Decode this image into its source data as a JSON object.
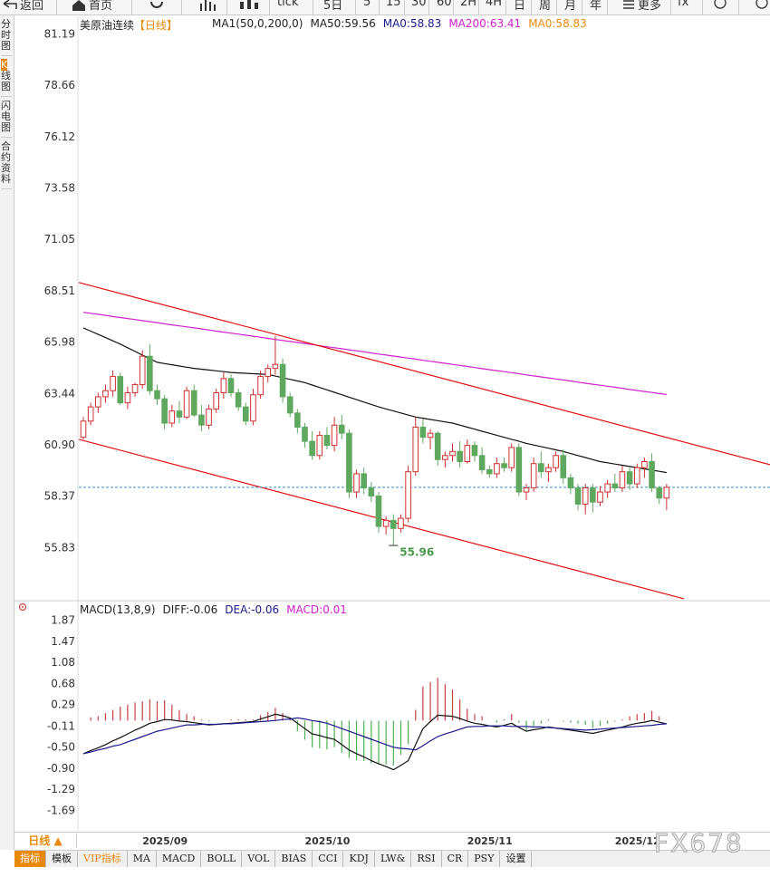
{
  "toolbar": [
    "返回",
    "首页",
    "tick",
    "5日",
    "5",
    "15",
    "30",
    "60",
    "2H",
    "4H",
    "日",
    "周",
    "月",
    "年",
    "更多",
    "fx"
  ],
  "side_tabs": [
    "分时图",
    "K线图",
    "闪电图",
    "合约资料"
  ],
  "chart_data": [
    {
      "type": "candlestick",
      "title": "美原油连续",
      "title_color": "#222222",
      "period": "【日线】",
      "period_color": "#e8890c",
      "legend": [
        {
          "text": "MA1(50,0,200,0)",
          "color": "#222222"
        },
        {
          "text": "MA50:59.56",
          "color": "#222222"
        },
        {
          "text": "MA0:58.83",
          "color": "#1a1a8c"
        },
        {
          "text": "MA200:63.41",
          "color": "#d020d0"
        },
        {
          "text": "MA0:58.83",
          "color": "#e8890c"
        }
      ],
      "up_color": "#d03030",
      "down_color": "#5fa85f",
      "ohlc": [
        [
          61.3,
          62.3,
          61.2,
          62.1
        ],
        [
          62.1,
          63.0,
          61.9,
          62.8
        ],
        [
          62.8,
          63.5,
          62.5,
          63.3
        ],
        [
          63.3,
          63.9,
          63.0,
          63.6
        ],
        [
          63.6,
          64.6,
          63.3,
          64.3
        ],
        [
          64.3,
          64.5,
          62.9,
          63.0
        ],
        [
          63.0,
          63.8,
          62.7,
          63.5
        ],
        [
          63.5,
          64.0,
          63.3,
          63.9
        ],
        [
          63.9,
          65.6,
          63.7,
          65.3
        ],
        [
          65.3,
          65.9,
          63.4,
          63.6
        ],
        [
          63.6,
          63.9,
          62.9,
          63.2
        ],
        [
          63.2,
          63.4,
          61.7,
          62.0
        ],
        [
          62.0,
          62.9,
          61.8,
          62.6
        ],
        [
          62.6,
          63.1,
          62.0,
          62.3
        ],
        [
          62.3,
          63.8,
          62.2,
          63.6
        ],
        [
          63.6,
          63.9,
          62.3,
          62.4
        ],
        [
          62.4,
          62.9,
          61.6,
          61.9
        ],
        [
          61.9,
          62.9,
          61.7,
          62.7
        ],
        [
          62.7,
          63.7,
          62.5,
          63.5
        ],
        [
          63.5,
          64.5,
          63.2,
          64.2
        ],
        [
          64.2,
          64.4,
          63.3,
          63.5
        ],
        [
          63.5,
          63.7,
          62.6,
          62.8
        ],
        [
          62.8,
          63.0,
          61.9,
          62.1
        ],
        [
          62.1,
          63.7,
          61.9,
          63.4
        ],
        [
          63.4,
          64.6,
          63.2,
          64.3
        ],
        [
          64.3,
          64.9,
          64.0,
          64.7
        ],
        [
          64.7,
          66.3,
          64.4,
          64.9
        ],
        [
          64.9,
          65.2,
          63.0,
          63.3
        ],
        [
          63.3,
          63.5,
          62.3,
          62.5
        ],
        [
          62.5,
          62.7,
          61.5,
          61.8
        ],
        [
          61.8,
          62.0,
          60.8,
          61.1
        ],
        [
          61.1,
          61.6,
          60.2,
          60.4
        ],
        [
          60.4,
          61.6,
          60.2,
          61.4
        ],
        [
          61.4,
          61.8,
          60.7,
          60.9
        ],
        [
          60.9,
          62.3,
          60.6,
          61.9
        ],
        [
          61.9,
          62.4,
          61.2,
          61.5
        ],
        [
          61.5,
          61.7,
          58.3,
          58.6
        ],
        [
          58.6,
          59.7,
          58.3,
          59.5
        ],
        [
          59.5,
          59.8,
          58.5,
          58.8
        ],
        [
          58.8,
          59.1,
          58.1,
          58.4
        ],
        [
          58.4,
          58.6,
          56.6,
          56.9
        ],
        [
          56.9,
          57.4,
          56.5,
          57.2
        ],
        [
          57.2,
          57.5,
          55.96,
          56.8
        ],
        [
          56.8,
          57.5,
          56.6,
          57.3
        ],
        [
          57.3,
          59.9,
          57.1,
          59.6
        ],
        [
          59.6,
          62.3,
          59.4,
          61.8
        ],
        [
          61.8,
          62.2,
          61.0,
          61.3
        ],
        [
          61.3,
          61.7,
          60.7,
          61.5
        ],
        [
          61.5,
          61.6,
          59.9,
          60.2
        ],
        [
          60.2,
          60.6,
          59.8,
          60.4
        ],
        [
          60.4,
          61.0,
          60.1,
          60.6
        ],
        [
          60.6,
          61.1,
          59.8,
          60.1
        ],
        [
          60.1,
          61.2,
          60.0,
          60.9
        ],
        [
          60.9,
          61.1,
          60.1,
          60.4
        ],
        [
          60.4,
          60.8,
          59.5,
          59.7
        ],
        [
          59.7,
          59.9,
          59.3,
          59.5
        ],
        [
          59.5,
          60.3,
          59.3,
          60.0
        ],
        [
          60.0,
          60.3,
          59.6,
          59.8
        ],
        [
          59.8,
          61.0,
          59.6,
          60.8
        ],
        [
          60.8,
          61.0,
          58.4,
          58.6
        ],
        [
          58.6,
          59.0,
          58.2,
          58.8
        ],
        [
          58.8,
          60.3,
          58.6,
          60.0
        ],
        [
          60.0,
          60.6,
          59.3,
          59.6
        ],
        [
          59.6,
          60.0,
          59.1,
          59.8
        ],
        [
          59.8,
          60.6,
          59.6,
          60.4
        ],
        [
          60.4,
          60.7,
          59.0,
          59.3
        ],
        [
          59.3,
          59.5,
          58.5,
          58.8
        ],
        [
          58.8,
          59.0,
          57.7,
          58.0
        ],
        [
          58.0,
          59.0,
          57.5,
          58.8
        ],
        [
          58.8,
          59.0,
          57.6,
          58.1
        ],
        [
          58.1,
          58.9,
          57.9,
          58.6
        ],
        [
          58.6,
          59.2,
          58.3,
          59.0
        ],
        [
          59.0,
          59.5,
          58.6,
          58.8
        ],
        [
          58.8,
          59.9,
          58.6,
          59.6
        ],
        [
          59.6,
          59.8,
          58.7,
          59.0
        ],
        [
          59.0,
          60.0,
          58.8,
          59.8
        ],
        [
          59.8,
          60.3,
          59.3,
          60.1
        ],
        [
          60.1,
          60.5,
          58.6,
          58.8
        ],
        [
          58.8,
          58.9,
          58.0,
          58.3
        ],
        [
          58.3,
          59.0,
          57.7,
          58.83
        ]
      ],
      "series": [
        {
          "color": "#111111",
          "values": [
            66.7,
            66.54,
            66.38,
            66.22,
            66.06,
            65.9,
            65.72,
            65.54,
            65.36,
            65.18,
            65.0,
            64.94,
            64.88,
            64.82,
            64.76,
            64.7,
            64.66,
            64.62,
            64.58,
            64.54,
            64.5,
            64.48,
            64.46,
            64.44,
            64.42,
            64.4,
            64.32,
            64.24,
            64.16,
            64.08,
            64.0,
            63.88,
            63.76,
            63.64,
            63.52,
            63.4,
            63.28,
            63.16,
            63.04,
            62.92,
            62.8,
            62.7,
            62.6,
            62.5,
            62.4,
            62.3,
            62.24,
            62.18,
            62.12,
            62.06,
            62.0,
            61.9,
            61.8,
            61.7,
            61.6,
            61.5,
            61.4,
            61.3,
            61.2,
            61.1,
            61.0,
            60.92,
            60.84,
            60.76,
            60.68,
            60.6,
            60.5,
            60.4,
            60.3,
            60.2,
            60.1,
            60.04,
            59.98,
            59.92,
            59.86,
            59.8,
            59.74,
            59.68,
            59.62,
            59.56
          ]
        },
        {
          "color": "#d020d0",
          "values": [
            67.47,
            67.42,
            67.37,
            67.32,
            67.26,
            67.21,
            67.16,
            67.11,
            67.06,
            67.01,
            66.96,
            66.9,
            66.85,
            66.8,
            66.75,
            66.7,
            66.65,
            66.6,
            66.54,
            66.49,
            66.44,
            66.39,
            66.34,
            66.29,
            66.24,
            66.18,
            66.13,
            66.08,
            66.03,
            65.98,
            65.93,
            65.88,
            65.82,
            65.77,
            65.72,
            65.67,
            65.62,
            65.57,
            65.52,
            65.46,
            65.41,
            65.36,
            65.31,
            65.26,
            65.21,
            65.16,
            65.1,
            65.05,
            65.0,
            64.95,
            64.9,
            64.85,
            64.8,
            64.74,
            64.69,
            64.64,
            64.59,
            64.54,
            64.49,
            64.44,
            64.38,
            64.33,
            64.28,
            64.23,
            64.18,
            64.13,
            64.08,
            64.02,
            63.97,
            63.92,
            63.87,
            63.82,
            63.77,
            63.72,
            63.66,
            63.61,
            63.56,
            63.51,
            63.46,
            63.41
          ]
        }
      ],
      "trendlines": [
        {
          "color": "#e01010",
          "x": [
            -0.61,
            93.0
          ],
          "values": [
            68.94,
            59.95
          ]
        },
        {
          "color": "#e01010",
          "x": [
            -0.61,
            81.35
          ],
          "values": [
            61.2,
            53.33
          ]
        }
      ],
      "last_price": 58.83,
      "last_price_color": "#3b8fc4",
      "low_annotation": {
        "index": 42,
        "value": 55.96,
        "color": "#4a9a4a"
      },
      "ylim": [
        53.28,
        82.08
      ],
      "yticks": [
        81.19,
        78.66,
        76.12,
        73.58,
        71.05,
        68.51,
        65.98,
        63.44,
        {
          "value": 60.9,
          "label": "60.90"
        },
        58.37,
        55.83
      ]
    },
    {
      "type": "macd",
      "legend": [
        {
          "text": "MACD(13,8,9)",
          "color": "#222222"
        },
        {
          "text": "DIFF:-0.06",
          "color": "#222222"
        },
        {
          "text": "DEA:-0.06",
          "color": "#1a1a8c"
        },
        {
          "text": "MACD:0.01",
          "color": "#d020d0"
        }
      ],
      "up_color": "#c84040",
      "down_color": "#4caf50",
      "values": [
        0.0,
        0.06,
        0.08,
        0.14,
        0.2,
        0.26,
        0.3,
        0.34,
        0.36,
        0.4,
        0.36,
        0.38,
        0.3,
        0.2,
        0.12,
        0.08,
        0.02,
        -0.02,
        0.0,
        0.0,
        0.02,
        0.02,
        0.02,
        0.02,
        0.1,
        0.16,
        0.24,
        0.14,
        0.04,
        -0.2,
        -0.36,
        -0.5,
        -0.52,
        -0.54,
        -0.5,
        -0.6,
        -0.7,
        -0.74,
        -0.76,
        -0.8,
        -0.82,
        -0.82,
        -0.84,
        -0.64,
        -0.44,
        0.2,
        0.64,
        0.72,
        0.8,
        0.68,
        0.58,
        0.4,
        0.22,
        0.12,
        0.08,
        0.0,
        -0.04,
        0.02,
        0.12,
        -0.04,
        -0.18,
        -0.1,
        -0.06,
        0.02,
        0.0,
        -0.02,
        -0.04,
        -0.06,
        -0.08,
        -0.14,
        -0.1,
        -0.06,
        -0.02,
        0.02,
        0.08,
        0.12,
        0.14,
        0.18,
        0.08,
        0.01
      ],
      "series": [
        {
          "color": "#111111",
          "values": [
            -0.62,
            -0.56,
            -0.51,
            -0.45,
            -0.38,
            -0.32,
            -0.25,
            -0.18,
            -0.12,
            -0.05,
            -0.02,
            0.02,
            0.01,
            -0.01,
            -0.02,
            -0.04,
            -0.06,
            -0.08,
            -0.07,
            -0.06,
            -0.05,
            -0.04,
            -0.03,
            -0.02,
            0.03,
            0.07,
            0.12,
            0.09,
            0.05,
            -0.05,
            -0.15,
            -0.25,
            -0.28,
            -0.32,
            -0.35,
            -0.45,
            -0.55,
            -0.62,
            -0.68,
            -0.75,
            -0.81,
            -0.86,
            -0.92,
            -0.84,
            -0.75,
            -0.45,
            -0.15,
            -0.02,
            0.1,
            0.09,
            0.08,
            0.04,
            -0.01,
            -0.05,
            -0.07,
            -0.1,
            -0.12,
            -0.09,
            -0.05,
            -0.13,
            -0.2,
            -0.17,
            -0.15,
            -0.12,
            -0.14,
            -0.16,
            -0.18,
            -0.2,
            -0.22,
            -0.24,
            -0.21,
            -0.18,
            -0.15,
            -0.12,
            -0.08,
            -0.05,
            -0.03,
            0.0,
            -0.03,
            -0.06
          ]
        },
        {
          "color": "#1a1a8c",
          "values": [
            -0.62,
            -0.59,
            -0.55,
            -0.52,
            -0.48,
            -0.45,
            -0.4,
            -0.35,
            -0.3,
            -0.25,
            -0.2,
            -0.17,
            -0.14,
            -0.11,
            -0.08,
            -0.08,
            -0.07,
            -0.07,
            -0.07,
            -0.06,
            -0.06,
            -0.05,
            -0.04,
            -0.03,
            -0.02,
            -0.01,
            0.0,
            0.02,
            0.03,
            0.05,
            0.03,
            0.0,
            -0.02,
            -0.05,
            -0.1,
            -0.15,
            -0.2,
            -0.25,
            -0.3,
            -0.35,
            -0.4,
            -0.45,
            -0.5,
            -0.52,
            -0.53,
            -0.55,
            -0.47,
            -0.38,
            -0.3,
            -0.25,
            -0.21,
            -0.16,
            -0.12,
            -0.11,
            -0.11,
            -0.1,
            -0.1,
            -0.1,
            -0.11,
            -0.11,
            -0.11,
            -0.12,
            -0.12,
            -0.13,
            -0.14,
            -0.15,
            -0.16,
            -0.17,
            -0.18,
            -0.17,
            -0.16,
            -0.15,
            -0.14,
            -0.13,
            -0.12,
            -0.11,
            -0.1,
            -0.09,
            -0.07,
            -0.06
          ]
        }
      ],
      "ylim": [
        -2.08,
        2.21
      ],
      "yticks": [
        1.87,
        1.47,
        1.08,
        0.68,
        0.29,
        -0.11,
        {
          "value": -0.5,
          "label": "-0.50"
        },
        {
          "value": -0.9,
          "label": "-0.90"
        },
        -1.29,
        -1.69
      ],
      "x_labels": [
        {
          "index": 8,
          "label": "2025/09"
        },
        {
          "index": 30,
          "label": "2025/10"
        },
        {
          "index": 52,
          "label": "2025/11"
        },
        {
          "index": 72,
          "label": "2025/12"
        }
      ]
    }
  ],
  "bottom": {
    "period": "日线 ▲",
    "tabs": [
      "指标",
      "模板",
      "VIP指标",
      "MA",
      "MACD",
      "BOLL",
      "VOL",
      "BIAS",
      "CCI",
      "KDJ",
      "LW&",
      "RSI",
      "CR",
      "PSY",
      "设置"
    ]
  },
  "watermark": "FX678"
}
